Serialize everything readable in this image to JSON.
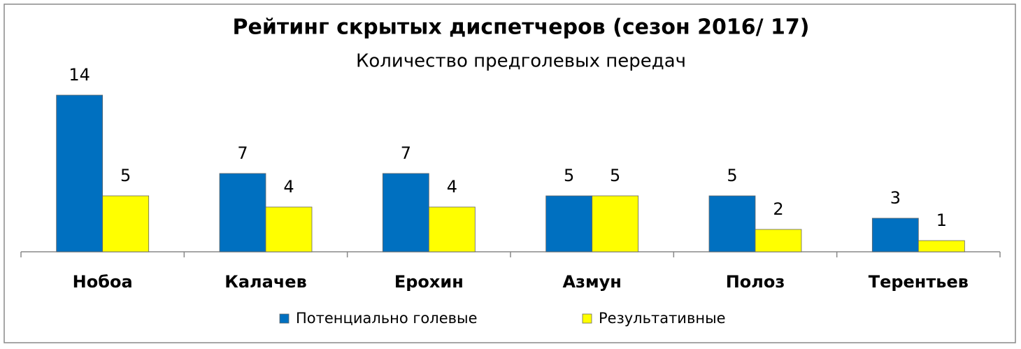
{
  "chart_data": {
    "type": "bar",
    "title": "Рейтинг скрытых диспетчеров (сезон 2016/ 17)",
    "subtitle": "Количество предголевых передач",
    "categories": [
      "Нобоа",
      "Калачев",
      "Ерохин",
      "Азмун",
      "Полоз",
      "Терентьев"
    ],
    "series": [
      {
        "name": "Потенциально голевые",
        "color": "#0070c0",
        "values": [
          14,
          7,
          7,
          5,
          5,
          3
        ]
      },
      {
        "name": "Результативные",
        "color": "#ffff00",
        "values": [
          5,
          4,
          4,
          5,
          2,
          1
        ]
      }
    ],
    "legend": "bottom"
  }
}
